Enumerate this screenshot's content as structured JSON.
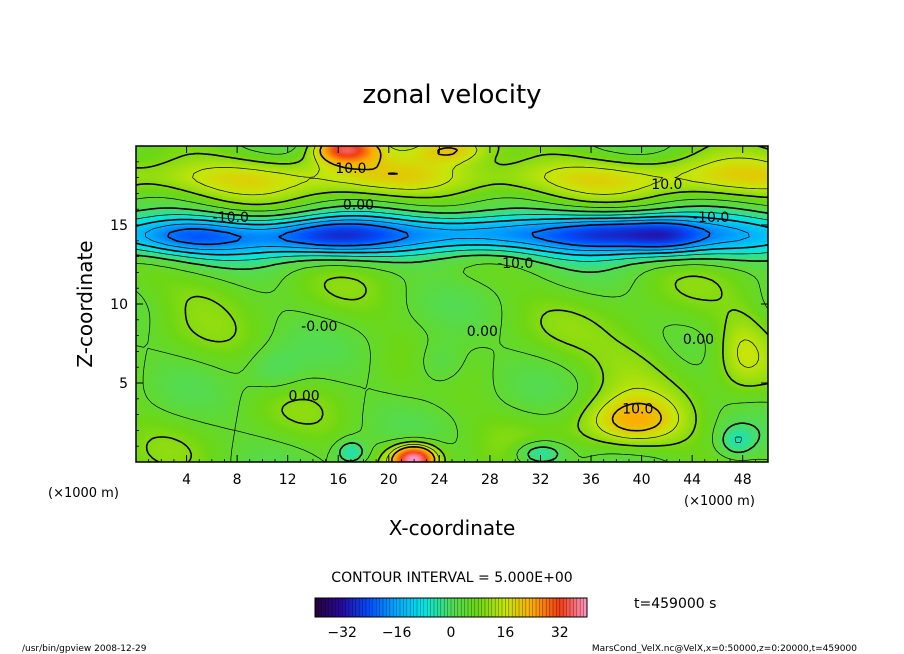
{
  "chart_data": {
    "type": "heatmap",
    "title": "zonal velocity",
    "xlabel": "X-coordinate",
    "ylabel": "Z-coordinate",
    "x_unit_label": "(×1000 m)",
    "y_unit_label": "(×1000 m)",
    "xlim": [
      0,
      50
    ],
    "ylim": [
      0,
      20
    ],
    "x_ticks": [
      4,
      8,
      12,
      16,
      20,
      24,
      28,
      32,
      36,
      40,
      44,
      48
    ],
    "y_ticks": [
      5,
      10,
      15
    ],
    "grid": false,
    "contour_interval_label": "CONTOUR INTERVAL = 5.000E+00",
    "contour_labels": [
      {
        "text": "10.0",
        "x": 17,
        "y": 18.6
      },
      {
        "text": "10.0",
        "x": 42,
        "y": 17.6
      },
      {
        "text": "0.00",
        "x": 17.6,
        "y": 16.3
      },
      {
        "text": "-10.0",
        "x": 7.5,
        "y": 15.5
      },
      {
        "text": "-10.0",
        "x": 45.5,
        "y": 15.5
      },
      {
        "text": "-10.0",
        "x": 30,
        "y": 12.6
      },
      {
        "text": "-0.00",
        "x": 14.5,
        "y": 8.6
      },
      {
        "text": "0.00",
        "x": 27.4,
        "y": 8.3
      },
      {
        "text": "0.00",
        "x": 44.5,
        "y": 7.8
      },
      {
        "text": "0.00",
        "x": 13.3,
        "y": 4.2
      },
      {
        "text": "10.0",
        "x": 39.7,
        "y": 3.4
      }
    ],
    "colorbar": {
      "min": -40,
      "max": 40,
      "ticks": [
        -32,
        -16,
        0,
        16,
        32
      ],
      "tick_labels": [
        "−32",
        "−16",
        "0",
        "16",
        "32"
      ]
    },
    "time_label": "t=459000 s",
    "field_features": [
      {
        "x": 15,
        "y": 14.3,
        "value": -14,
        "sx": 5,
        "sy": 1.2
      },
      {
        "x": 27,
        "y": 14.5,
        "value": -9,
        "sx": 6,
        "sy": 1.1
      },
      {
        "x": 38,
        "y": 14.6,
        "value": -16,
        "sx": 5,
        "sy": 1.2
      },
      {
        "x": 42,
        "y": 14.2,
        "value": -10,
        "sx": 3,
        "sy": 1.2
      },
      {
        "x": 4,
        "y": 14.3,
        "value": -10,
        "sx": 5,
        "sy": 1.2
      },
      {
        "x": 16.5,
        "y": 19.8,
        "value": 26,
        "sx": 2.5,
        "sy": 0.9
      },
      {
        "x": 25,
        "y": 19.8,
        "value": 14,
        "sx": 3,
        "sy": 0.9
      },
      {
        "x": 22,
        "y": 0.2,
        "value": 36,
        "sx": 1.8,
        "sy": 0.9
      },
      {
        "x": 17,
        "y": 0.6,
        "value": -12,
        "sx": 1.2,
        "sy": 0.8
      },
      {
        "x": 32,
        "y": 0.5,
        "value": -14,
        "sx": 2,
        "sy": 0.8
      },
      {
        "x": 47.5,
        "y": 1.3,
        "value": -9,
        "sx": 1.4,
        "sy": 1
      },
      {
        "x": 24,
        "y": 6.2,
        "value": -8,
        "sx": 2.2,
        "sy": 1.6
      },
      {
        "x": 11,
        "y": 5.8,
        "value": -6,
        "sx": 2.2,
        "sy": 1.4
      },
      {
        "x": 39,
        "y": 2.5,
        "value": 14,
        "sx": 4,
        "sy": 1.6
      },
      {
        "x": 40,
        "y": 6.5,
        "value": 6,
        "sx": 4,
        "sy": 2.5
      },
      {
        "x": 48,
        "y": 7,
        "value": 8,
        "sx": 2,
        "sy": 2.5
      },
      {
        "x": 6,
        "y": 11,
        "value": 3,
        "sx": 4,
        "sy": 1.5
      }
    ],
    "field_baseline": 6
  },
  "footer": {
    "left": "/usr/bin/gpview 2008-12-29",
    "right": "MarsCond_VelX.nc@VelX,x=0:50000,z=0:20000,t=459000"
  }
}
